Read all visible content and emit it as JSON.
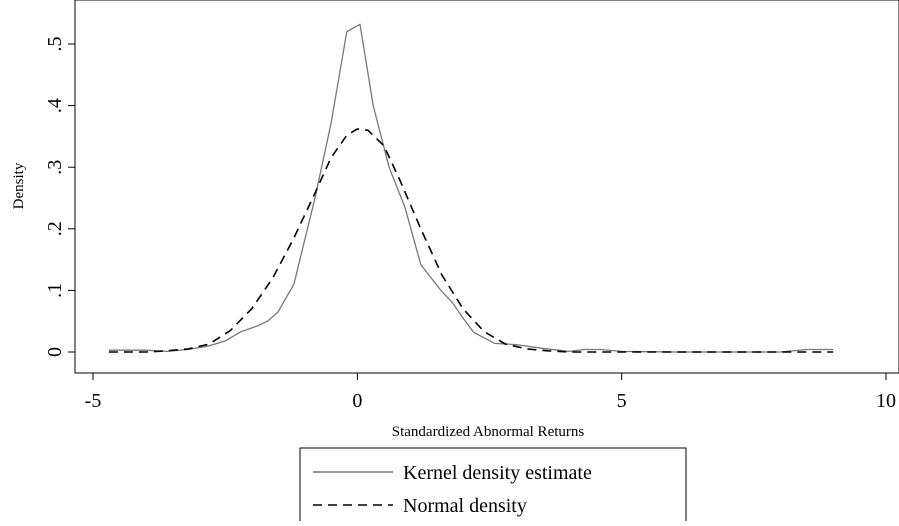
{
  "chart_data": {
    "type": "line",
    "xlabel": "Standardized Abnormal Returns",
    "ylabel": "Density",
    "xlim": [
      -5,
      10
    ],
    "ylim": [
      0,
      0.5
    ],
    "xticks": [
      -5,
      0,
      5,
      10
    ],
    "xtick_labels": [
      "-5",
      "0",
      "5",
      "10"
    ],
    "yticks": [
      0,
      0.1,
      0.2,
      0.3,
      0.4,
      0.5
    ],
    "ytick_labels": [
      "0",
      ".1",
      ".2",
      ".3",
      ".4",
      ".5"
    ],
    "grid": false,
    "legend_position": "bottom",
    "series": [
      {
        "name": "Kernel density estimate",
        "style": "solid",
        "color": "#777777",
        "x": [
          -4.7,
          -4.0,
          -3.6,
          -3.2,
          -2.8,
          -2.5,
          -2.2,
          -1.9,
          -1.7,
          -1.5,
          -1.2,
          -0.8,
          -0.5,
          -0.2,
          0.05,
          0.3,
          0.6,
          0.9,
          1.2,
          1.4,
          1.6,
          1.8,
          2.0,
          2.2,
          2.6,
          3.0,
          3.5,
          4.0,
          4.3,
          4.6,
          5.0,
          6.0,
          7.0,
          8.0,
          8.5,
          9.0
        ],
        "y": [
          0.003,
          0.003,
          0.001,
          0.004,
          0.01,
          0.018,
          0.033,
          0.042,
          0.05,
          0.065,
          0.11,
          0.25,
          0.37,
          0.52,
          0.532,
          0.4,
          0.3,
          0.235,
          0.142,
          0.12,
          0.098,
          0.08,
          0.055,
          0.032,
          0.014,
          0.012,
          0.006,
          0.001,
          0.004,
          0.004,
          0.001,
          0.0,
          0.0,
          0.0,
          0.004,
          0.004
        ]
      },
      {
        "name": "Normal density",
        "style": "dashed",
        "color": "#000000",
        "x": [
          -4.7,
          -4.0,
          -3.6,
          -3.2,
          -2.8,
          -2.4,
          -2.0,
          -1.6,
          -1.2,
          -0.8,
          -0.5,
          -0.2,
          0.0,
          0.2,
          0.5,
          0.8,
          1.2,
          1.6,
          2.0,
          2.4,
          2.8,
          3.2,
          3.6,
          4.0,
          5.0,
          7.0,
          9.0
        ],
        "y": [
          0.0,
          0.0,
          0.002,
          0.005,
          0.013,
          0.035,
          0.07,
          0.12,
          0.185,
          0.258,
          0.315,
          0.352,
          0.362,
          0.36,
          0.335,
          0.28,
          0.2,
          0.125,
          0.07,
          0.033,
          0.013,
          0.005,
          0.002,
          0.0,
          0.0,
          0.0,
          0.0
        ]
      }
    ]
  }
}
